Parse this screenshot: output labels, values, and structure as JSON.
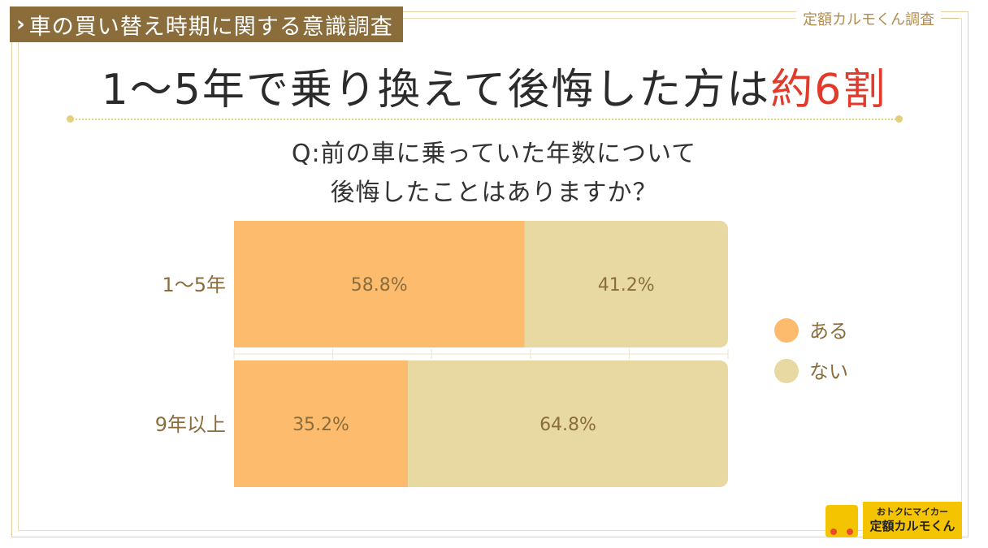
{
  "header": {
    "tag": "車の買い替え時期に関する意識調査",
    "source": "定額カルモくん調査"
  },
  "headline": {
    "main": "1～5年で乗り換えて後悔した方は",
    "accent": "約6割"
  },
  "question": {
    "line1": "Q:前の車に乗っていた年数について",
    "line2": "後悔したことはありますか？"
  },
  "colors": {
    "aru": "#fcbb6d",
    "nai": "#e8d9a3",
    "label": "#8a6d3b",
    "accent": "#e23b2b"
  },
  "chart_data": {
    "type": "bar",
    "orientation": "horizontal",
    "stacked": true,
    "categories": [
      "1～5年",
      "9年以上"
    ],
    "series": [
      {
        "name": "ある",
        "values": [
          58.8,
          35.2
        ],
        "labels": [
          "58.8%",
          "35.2%"
        ]
      },
      {
        "name": "ない",
        "values": [
          41.2,
          64.8
        ],
        "labels": [
          "41.2%",
          "64.8%"
        ]
      }
    ],
    "xlim": [
      0,
      100
    ],
    "legend": "right",
    "grid": true
  },
  "logo": {
    "tagline": "おトクにマイカー",
    "name": "定額カルモくん"
  }
}
